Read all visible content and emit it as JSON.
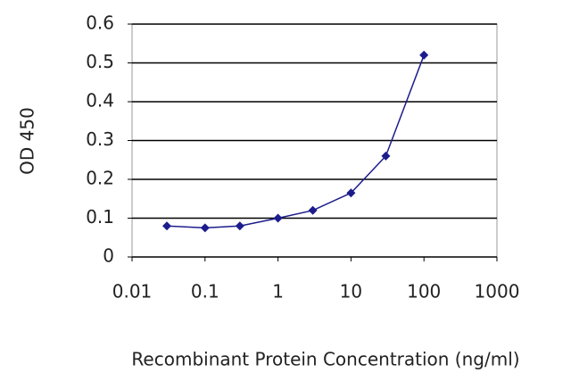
{
  "chart_data": {
    "type": "line",
    "xlabel": "Recombinant Protein Concentration (ng/ml)",
    "ylabel": "OD 450",
    "x": [
      0.03,
      0.1,
      0.3,
      1,
      3,
      10,
      30,
      100
    ],
    "series": [
      {
        "color": "#1c1c8c",
        "values": [
          0.08,
          0.075,
          0.08,
          0.1,
          0.12,
          0.165,
          0.26,
          0.52
        ]
      }
    ],
    "xscale": "log",
    "xlim": [
      0.01,
      1000
    ],
    "xticks": [
      0.01,
      0.1,
      1,
      10,
      100,
      1000
    ],
    "ylim": [
      0,
      0.6
    ],
    "yticks": [
      0,
      0.1,
      0.2,
      0.3,
      0.4,
      0.5,
      0.6
    ],
    "grid": true
  }
}
